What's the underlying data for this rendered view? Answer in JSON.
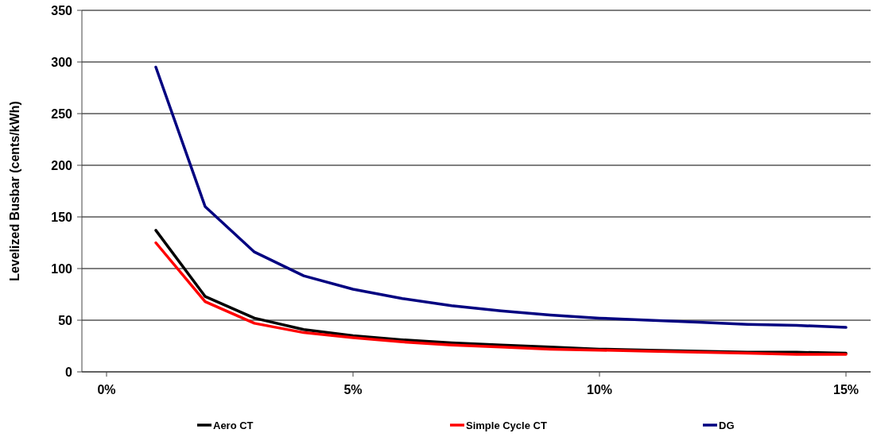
{
  "chart_data": {
    "type": "line",
    "ylabel": "Levelized Busbar (cents/kWh)",
    "x": [
      1,
      2,
      3,
      4,
      5,
      6,
      7,
      8,
      9,
      10,
      11,
      12,
      13,
      14,
      15
    ],
    "xlim": [
      -0.5,
      15.5
    ],
    "xticks": [
      {
        "value": 0,
        "label": "0%"
      },
      {
        "value": 5,
        "label": "5%"
      },
      {
        "value": 10,
        "label": "10%"
      },
      {
        "value": 15,
        "label": "15%"
      }
    ],
    "ylim": [
      0,
      350
    ],
    "yticks": [
      0,
      50,
      100,
      150,
      200,
      250,
      300,
      350
    ],
    "grid": "y",
    "legend": "bottom",
    "marker": "none",
    "line_style": "solid",
    "series": [
      {
        "name": "Aero CT",
        "color": "#000000",
        "values": [
          137,
          73,
          52,
          41,
          35,
          31,
          28,
          26,
          24,
          22,
          21,
          20,
          19,
          19,
          18
        ]
      },
      {
        "name": "Simple Cycle CT",
        "color": "#ff0000",
        "values": [
          125,
          68,
          47,
          38,
          33,
          29,
          26,
          24,
          22,
          21,
          20,
          19,
          18,
          17,
          17
        ]
      },
      {
        "name": "DG",
        "color": "#000080",
        "values": [
          295,
          160,
          116,
          93,
          80,
          71,
          64,
          59,
          55,
          52,
          50,
          48,
          46,
          45,
          43
        ]
      }
    ]
  }
}
